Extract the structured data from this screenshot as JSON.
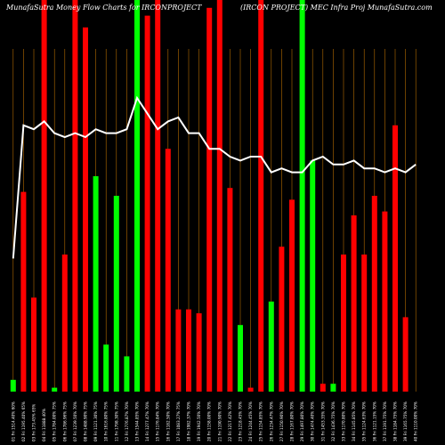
{
  "chart_data": {
    "type": "bar",
    "title_left": "MunafaSutra  Money Flow  Charts for IRCONPROJECT",
    "title_right": "(IRCON PROJECT) MEC Infra  Proj  MunafaSutra.com",
    "colors": {
      "background": "#000000",
      "up": "#00ff00",
      "down": "#ff0000",
      "grid": "#b36b00",
      "line": "#ffffff"
    },
    "categories": [
      "01 Fri 1514.40% 60%",
      "02 Fri 1195.40% 65%",
      "03 Fri 173.45% 65%",
      "04 Fri 11888.40%",
      "05 Fri 1784.00% 75%",
      "06 Fri 1786.96% 75%",
      "07 Fri 1239.50% 70%",
      "08 Fri 1488.90% 75%",
      "09 Fri 1121.30% 75%",
      "10 Fri 1616.80% 75%",
      "11 Fri 1798.30% 75%",
      "12 Fri 1776.87% 70%",
      "13 Fri 1544.85% 70%",
      "14 Fri 1277.47% 70%",
      "15 Fri 1176.84% 70%",
      "16 Fri 1182.50% 70%",
      "17 Fri 1083.27% 75%",
      "18 Fri 1982.37% 70%",
      "19 Fri 1942.50% 70%",
      "20 Fri 1158.00% 70%",
      "21 Fri 1190.90% 70%",
      "22 Fri 1217.42% 70%",
      "23 Fri 1218.45% 70%",
      "24 Fri 1244.45% 70%",
      "25 Fri 1154.85% 70%",
      "26 Fri 1234.47% 70%",
      "27 Fri 1150.90% 70%",
      "28 Fri 1167.80% 70%",
      "29 Fri 1497.80% 70%",
      "30 Fri 1474.40% 70%",
      "31 Fri 1453.35% 70%",
      "32 Fri 1436.75% 70%",
      "33 Fri 1170.80% 70%",
      "34 Fri 1145.85% 70%",
      "35 Fri 1124.63% 70%",
      "36 Fri 1121.15% 70%",
      "37 Fri 1191.75% 70%",
      "38 Fri 1184.75% 70%",
      "39 Fri 1165.75% 70%",
      "40 Fri 1110.00% 70%"
    ],
    "values": [
      3,
      51,
      24,
      100,
      1,
      35,
      100,
      93,
      55,
      12,
      50,
      9,
      100,
      96,
      100,
      62,
      21,
      21,
      20,
      98,
      100,
      52,
      17,
      1,
      100,
      23,
      37,
      49,
      100,
      59,
      2,
      2,
      35,
      45,
      35,
      50,
      46,
      68,
      19,
      0
    ],
    "directions": [
      "up",
      "down",
      "down",
      "down",
      "up",
      "down",
      "down",
      "down",
      "up",
      "up",
      "up",
      "up",
      "up",
      "down",
      "down",
      "down",
      "down",
      "down",
      "down",
      "down",
      "down",
      "down",
      "up",
      "down",
      "down",
      "up",
      "down",
      "down",
      "up",
      "up",
      "down",
      "up",
      "down",
      "down",
      "down",
      "down",
      "down",
      "down",
      "down",
      "up"
    ],
    "line_values": [
      34,
      68,
      67,
      69,
      66,
      65,
      66,
      65,
      67,
      66,
      66,
      67,
      75,
      71,
      67,
      69,
      70,
      66,
      66,
      62,
      62,
      60,
      59,
      60,
      60,
      56,
      57,
      56,
      56,
      59,
      60,
      58,
      58,
      59,
      57,
      57,
      56,
      57,
      56,
      58
    ],
    "ylim": [
      0,
      100
    ],
    "grid": true,
    "legend": "none",
    "xlabel": "",
    "ylabel": ""
  }
}
